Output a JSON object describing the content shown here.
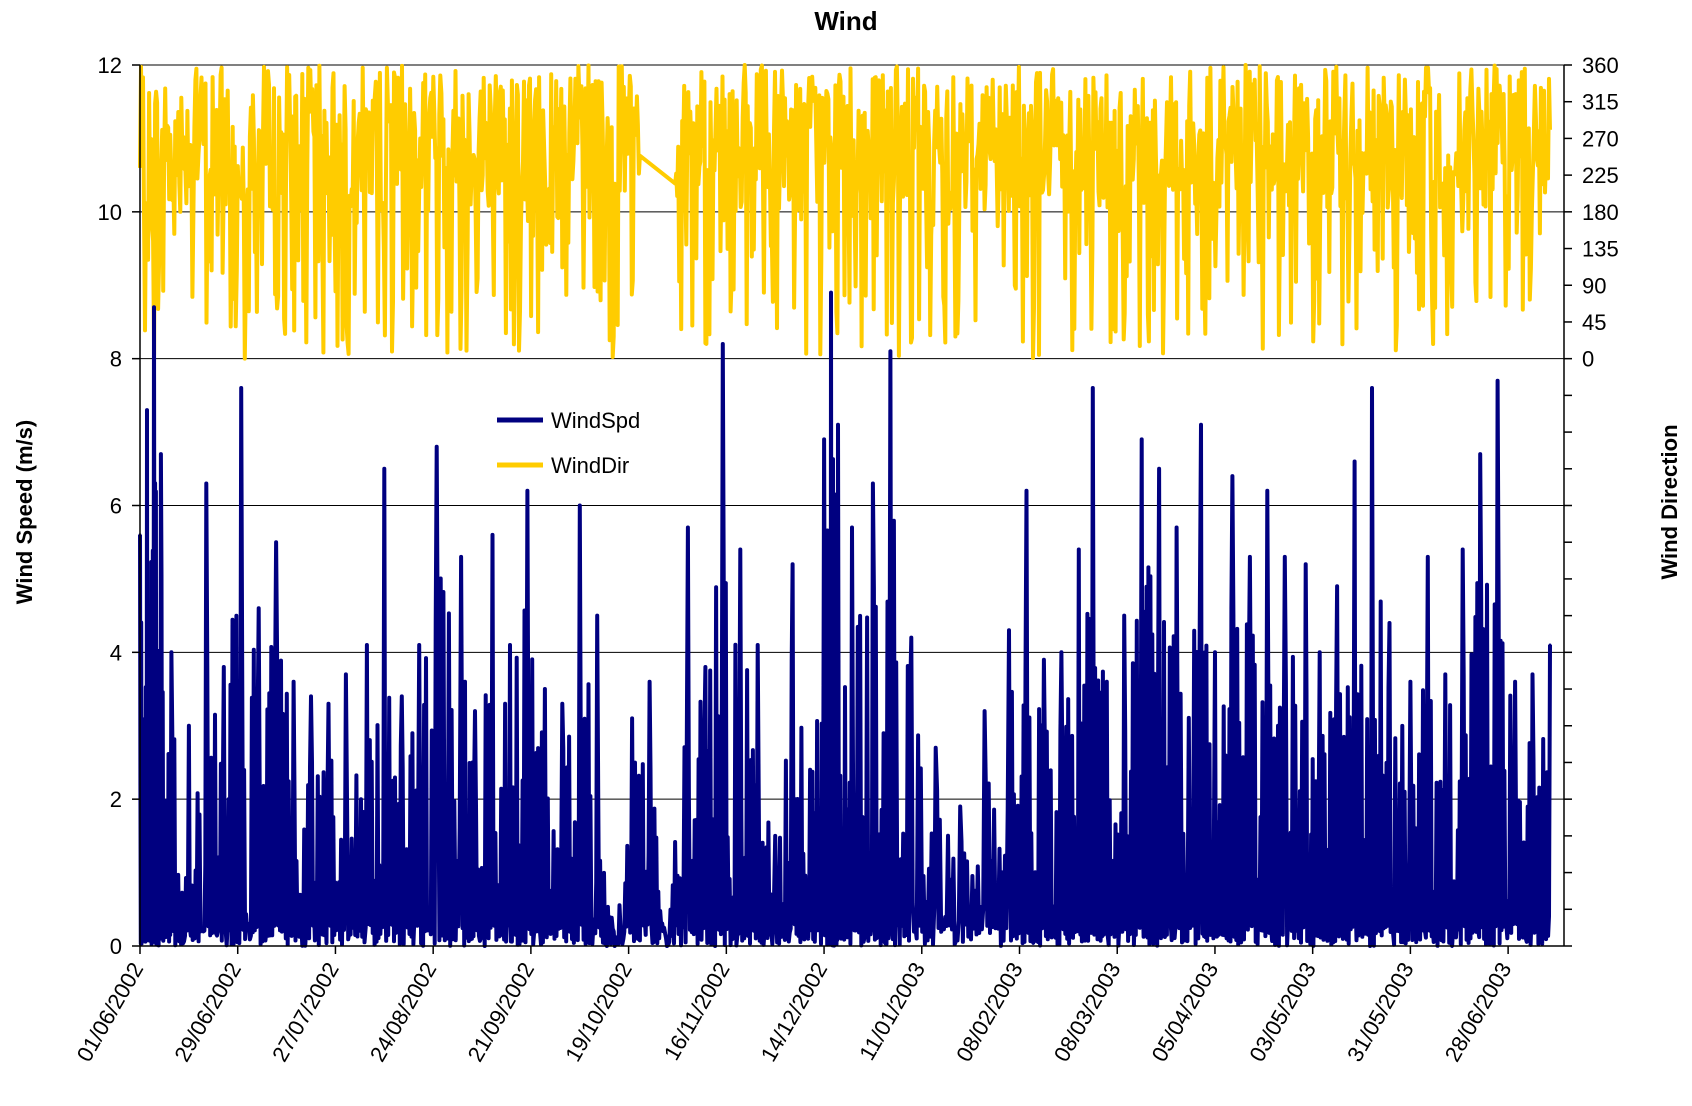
{
  "chart_data": {
    "type": "line",
    "title": "Wind",
    "ylabel": "Wind Speed (m/s)",
    "y2label": "Wind Direction",
    "ylim": [
      0,
      12
    ],
    "y2lim": [
      0,
      360
    ],
    "y2_ticks": [
      0,
      45,
      90,
      135,
      180,
      225,
      270,
      315,
      360
    ],
    "y_ticks": [
      0,
      2,
      4,
      6,
      8,
      10,
      12
    ],
    "y2_note": "Wind Direction series occupies the upper band of the plot (values 0–360 mapped between y=8 and y=12 m/s).",
    "x_tick_labels": [
      "01/06/2002",
      "29/06/2002",
      "27/07/2002",
      "24/08/2002",
      "21/09/2002",
      "19/10/2002",
      "16/11/2002",
      "14/12/2002",
      "11/01/2003",
      "08/02/2003",
      "08/03/2003",
      "05/04/2003",
      "03/05/2003",
      "31/05/2003",
      "28/06/2003"
    ],
    "x_range": [
      "01/06/2002",
      "10/07/2003"
    ],
    "grid": true,
    "legend_position": "center-left",
    "series": [
      {
        "name": "WindSpd",
        "color": "#000080",
        "axis": "left",
        "sampled_points": [
          [
            "01/06/2002",
            5.6
          ],
          [
            "03/06/2002",
            7.3
          ],
          [
            "05/06/2002",
            8.7
          ],
          [
            "07/06/2002",
            6.7
          ],
          [
            "10/06/2002",
            4.0
          ],
          [
            "15/06/2002",
            3.0
          ],
          [
            "20/06/2002",
            6.3
          ],
          [
            "25/06/2002",
            3.8
          ],
          [
            "30/06/2002",
            7.6
          ],
          [
            "05/07/2002",
            4.6
          ],
          [
            "10/07/2002",
            5.5
          ],
          [
            "15/07/2002",
            3.6
          ],
          [
            "20/07/2002",
            3.4
          ],
          [
            "25/07/2002",
            3.3
          ],
          [
            "30/07/2002",
            3.7
          ],
          [
            "05/08/2002",
            4.1
          ],
          [
            "10/08/2002",
            6.5
          ],
          [
            "15/08/2002",
            3.4
          ],
          [
            "20/08/2002",
            4.1
          ],
          [
            "25/08/2002",
            6.8
          ],
          [
            "01/09/2002",
            5.3
          ],
          [
            "05/09/2002",
            3.2
          ],
          [
            "10/09/2002",
            5.6
          ],
          [
            "15/09/2002",
            4.1
          ],
          [
            "20/09/2002",
            6.2
          ],
          [
            "25/09/2002",
            3.5
          ],
          [
            "30/09/2002",
            3.3
          ],
          [
            "05/10/2002",
            6.0
          ],
          [
            "10/10/2002",
            4.5
          ],
          [
            "15/10/2002",
            0.0
          ],
          [
            "20/10/2002",
            3.1
          ],
          [
            "25/10/2002",
            3.6
          ],
          [
            "30/10/2002",
            0.0
          ],
          [
            "05/11/2002",
            5.7
          ],
          [
            "10/11/2002",
            3.8
          ],
          [
            "15/11/2002",
            8.2
          ],
          [
            "20/11/2002",
            5.4
          ],
          [
            "25/11/2002",
            4.1
          ],
          [
            "30/11/2002",
            1.5
          ],
          [
            "05/12/2002",
            5.2
          ],
          [
            "10/12/2002",
            2.4
          ],
          [
            "14/12/2002",
            6.9
          ],
          [
            "16/12/2002",
            8.9
          ],
          [
            "18/12/2002",
            7.1
          ],
          [
            "22/12/2002",
            5.7
          ],
          [
            "28/12/2002",
            6.3
          ],
          [
            "02/01/2003",
            8.1
          ],
          [
            "08/01/2003",
            4.2
          ],
          [
            "15/01/2003",
            2.7
          ],
          [
            "22/01/2003",
            1.9
          ],
          [
            "29/01/2003",
            3.2
          ],
          [
            "05/02/2003",
            4.3
          ],
          [
            "10/02/2003",
            6.2
          ],
          [
            "15/02/2003",
            3.9
          ],
          [
            "20/02/2003",
            4.0
          ],
          [
            "25/02/2003",
            5.4
          ],
          [
            "01/03/2003",
            7.6
          ],
          [
            "05/03/2003",
            3.6
          ],
          [
            "10/03/2003",
            4.5
          ],
          [
            "15/03/2003",
            6.9
          ],
          [
            "20/03/2003",
            6.5
          ],
          [
            "25/03/2003",
            5.7
          ],
          [
            "01/04/2003",
            7.1
          ],
          [
            "05/04/2003",
            4.0
          ],
          [
            "10/04/2003",
            6.4
          ],
          [
            "15/04/2003",
            5.3
          ],
          [
            "20/04/2003",
            6.2
          ],
          [
            "25/04/2003",
            5.3
          ],
          [
            "01/05/2003",
            5.2
          ],
          [
            "05/05/2003",
            4.0
          ],
          [
            "10/05/2003",
            4.9
          ],
          [
            "15/05/2003",
            6.6
          ],
          [
            "20/05/2003",
            7.6
          ],
          [
            "25/05/2003",
            4.4
          ],
          [
            "31/05/2003",
            3.6
          ],
          [
            "05/06/2003",
            5.3
          ],
          [
            "10/06/2003",
            3.7
          ],
          [
            "15/06/2003",
            5.4
          ],
          [
            "20/06/2003",
            6.7
          ],
          [
            "25/06/2003",
            7.7
          ],
          [
            "30/06/2003",
            3.6
          ],
          [
            "05/07/2003",
            3.7
          ],
          [
            "10/07/2003",
            4.1
          ]
        ]
      },
      {
        "name": "WindDir",
        "color": "#FFCC00",
        "axis": "right",
        "typical_range": [
          0,
          360
        ],
        "note": "Highly variable, oscillating between ~0 and 360 degrees throughout the period, mostly concentrated above 180."
      }
    ]
  },
  "legend": {
    "items": [
      {
        "label": "WindSpd",
        "color": "#000080"
      },
      {
        "label": "WindDir",
        "color": "#FFCC00"
      }
    ]
  }
}
